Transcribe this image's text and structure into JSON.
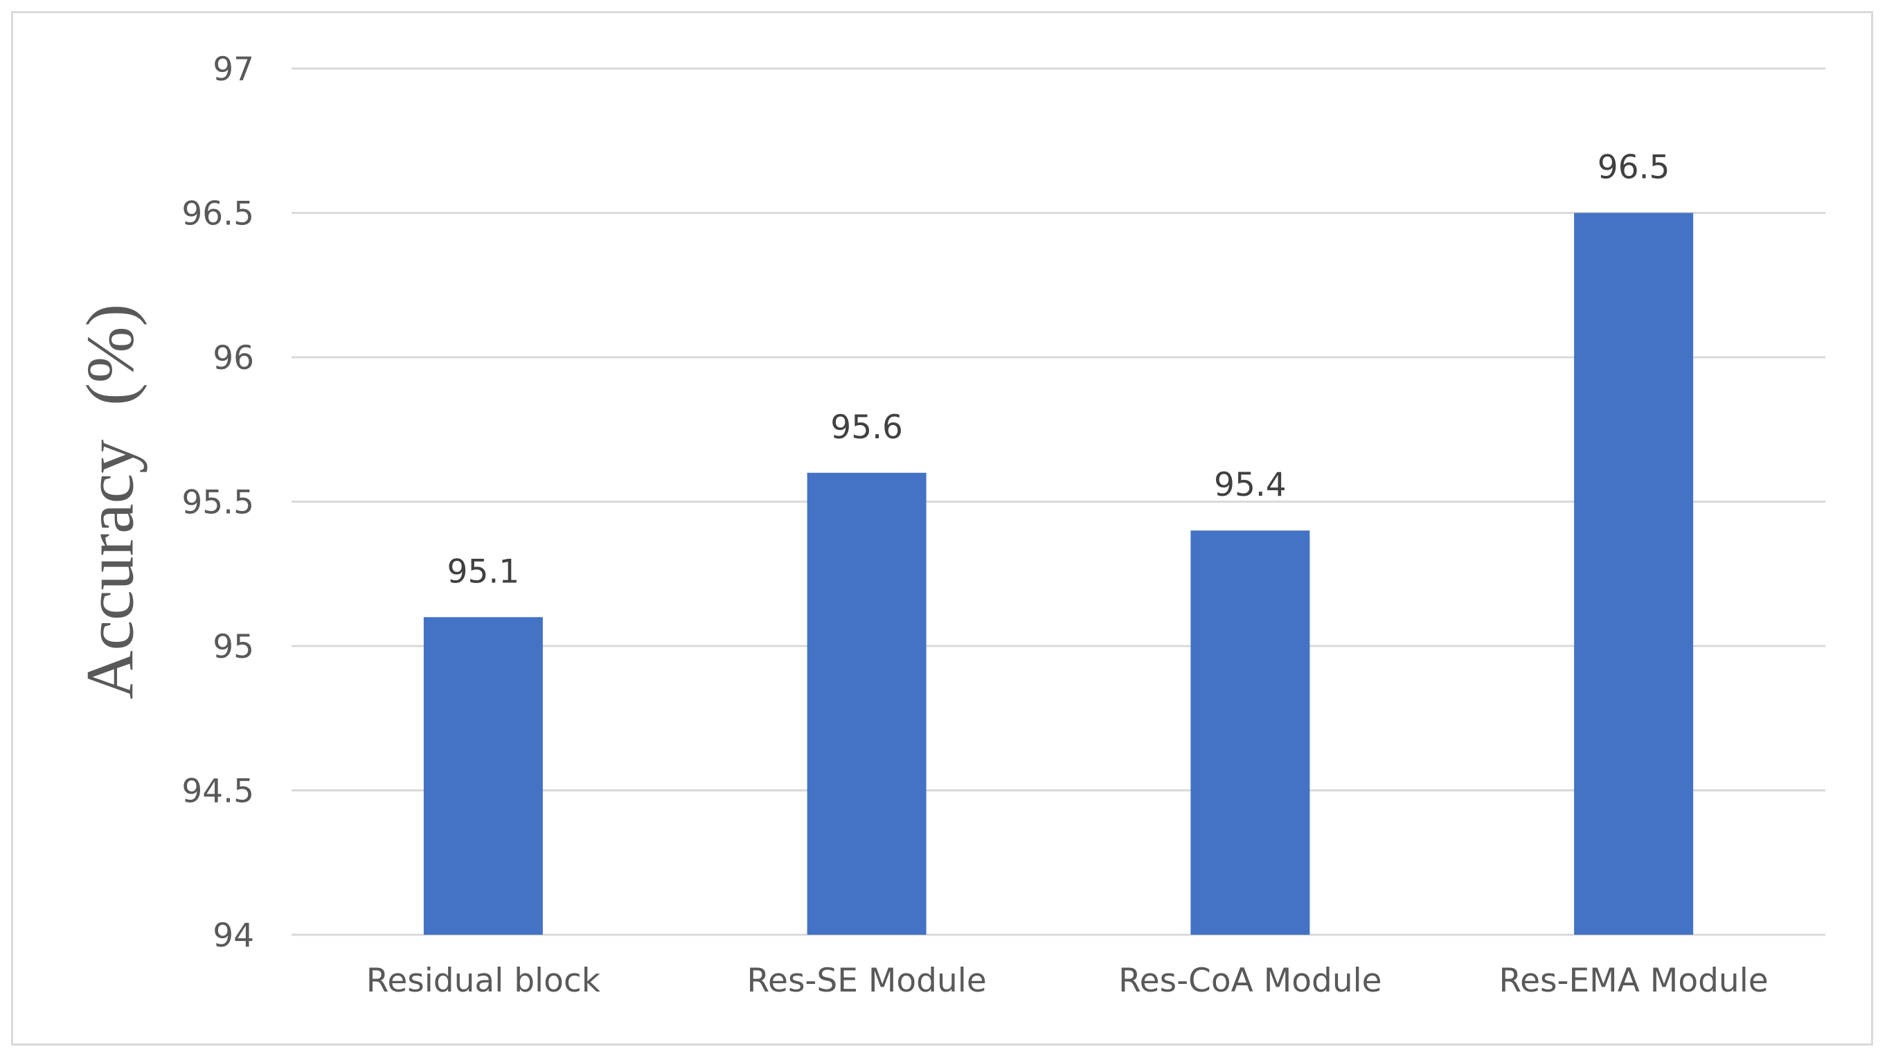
{
  "chart_data": {
    "type": "bar",
    "title": "",
    "xlabel": "",
    "ylabel": "Accuracy  (%)",
    "categories": [
      "Residual block",
      "Res-SE Module",
      "Res-CoA Module",
      "Res-EMA Module"
    ],
    "values": [
      95.1,
      95.6,
      95.4,
      96.5
    ],
    "data_labels": [
      "95.1",
      "95.6",
      "95.4",
      "96.5"
    ],
    "ylim": [
      94,
      97
    ],
    "yticks": [
      94,
      94.5,
      95,
      95.5,
      96,
      96.5,
      97
    ],
    "ytick_labels": [
      "94",
      "94.5",
      "95",
      "95.5",
      "96",
      "96.5",
      "97"
    ],
    "grid": true,
    "legend": "none",
    "colors": {
      "bar": "#4472c4",
      "grid": "#d9d9d9",
      "axis_text": "#595959",
      "label_text": "#404040"
    }
  }
}
